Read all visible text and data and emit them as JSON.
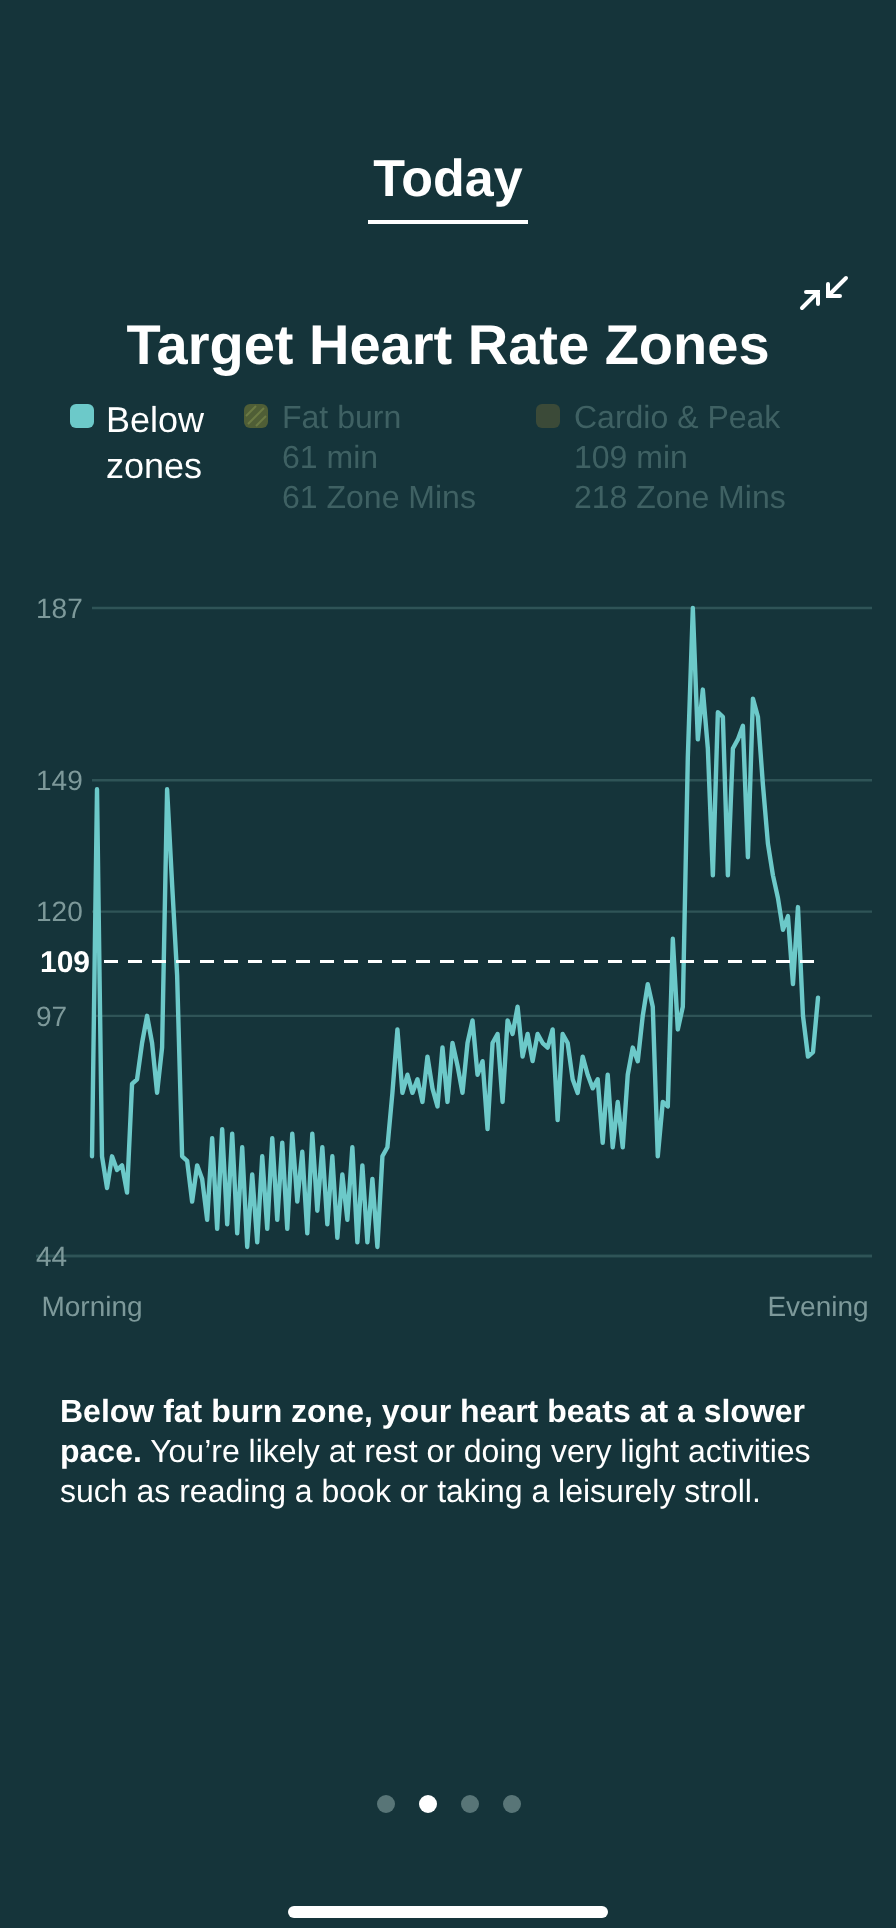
{
  "chart_data": {
    "type": "line",
    "title": "Target Heart Rate Zones",
    "annotations": [
      "Today",
      "Fat burn\n61 min\n61 Zone Mins",
      "Cardio & Peak\n109 min\n218 Zone Mins",
      "Below fat burn zone, your heart beats at a slower pace. You’re likely at rest or doing very light activities such as reading a book or taking a leisurely stroll."
    ],
    "categories": [
      "Morning",
      null,
      null,
      null,
      null,
      null,
      null,
      null,
      null,
      null,
      null,
      null,
      null,
      null,
      null,
      null,
      null,
      null,
      null,
      null,
      null,
      null,
      null,
      null,
      null,
      null,
      null,
      null,
      null,
      null,
      null,
      null,
      null,
      null,
      null,
      null,
      null,
      null,
      null,
      null,
      null,
      null,
      null,
      null,
      null,
      null,
      null,
      null,
      null,
      null,
      null,
      null,
      null,
      null,
      null,
      null,
      null,
      null,
      null,
      null,
      null,
      null,
      null,
      null,
      null,
      null,
      null,
      null,
      null,
      null,
      null,
      null,
      null,
      null,
      null,
      null,
      null,
      null,
      null,
      null,
      null,
      null,
      null,
      null,
      null,
      null,
      null,
      null,
      null,
      null,
      null,
      null,
      null,
      null,
      null,
      null,
      null,
      null,
      null,
      null,
      null,
      null,
      null,
      null,
      null,
      null,
      null,
      null,
      null,
      null,
      null,
      null,
      null,
      null,
      null,
      null,
      null,
      null,
      null,
      null,
      null,
      null,
      null,
      null,
      null,
      null,
      null,
      null,
      null,
      null,
      null,
      null,
      null,
      null,
      null,
      null,
      null,
      null,
      null,
      null,
      null,
      null,
      null,
      null,
      null,
      "Evening"
    ],
    "ylim": [
      44,
      187
    ],
    "yticks": [
      44,
      97,
      120,
      149,
      187
    ],
    "grid": "y",
    "legend": "top",
    "ref_lines": [
      {
        "axis": "y",
        "value": 109,
        "label": "109",
        "color": "#ffffff",
        "line_style": "dashed"
      }
    ],
    "series": [
      {
        "name": "Below zones",
        "color": "#6cc9c9",
        "values": [
          66,
          147,
          66,
          59,
          66,
          63,
          64,
          58,
          82,
          83,
          91,
          97,
          91,
          80,
          90,
          147,
          126,
          106,
          66,
          65,
          56,
          64,
          61,
          52,
          70,
          50,
          72,
          51,
          71,
          49,
          68,
          46,
          62,
          47,
          66,
          50,
          70,
          52,
          69,
          50,
          71,
          56,
          67,
          49,
          71,
          54,
          68,
          51,
          66,
          48,
          62,
          52,
          68,
          47,
          64,
          47,
          61,
          46,
          66,
          68,
          80,
          94,
          80,
          84,
          80,
          83,
          78,
          88,
          81,
          77,
          90,
          78,
          91,
          86,
          80,
          91,
          96,
          84,
          87,
          72,
          91,
          93,
          78,
          96,
          93,
          99,
          88,
          93,
          87,
          93,
          91,
          90,
          94,
          74,
          93,
          91,
          83,
          80,
          88,
          84,
          81,
          83,
          69,
          84,
          68,
          78,
          68,
          84,
          90,
          87,
          97,
          104,
          99,
          66,
          78,
          77,
          114,
          94,
          99,
          154,
          187,
          158,
          169,
          156,
          128,
          164,
          163,
          128,
          156,
          158,
          161,
          132,
          167,
          163,
          148,
          135,
          128,
          123,
          116,
          119,
          104,
          121,
          97,
          88,
          89,
          101
        ]
      }
    ]
  }
}
